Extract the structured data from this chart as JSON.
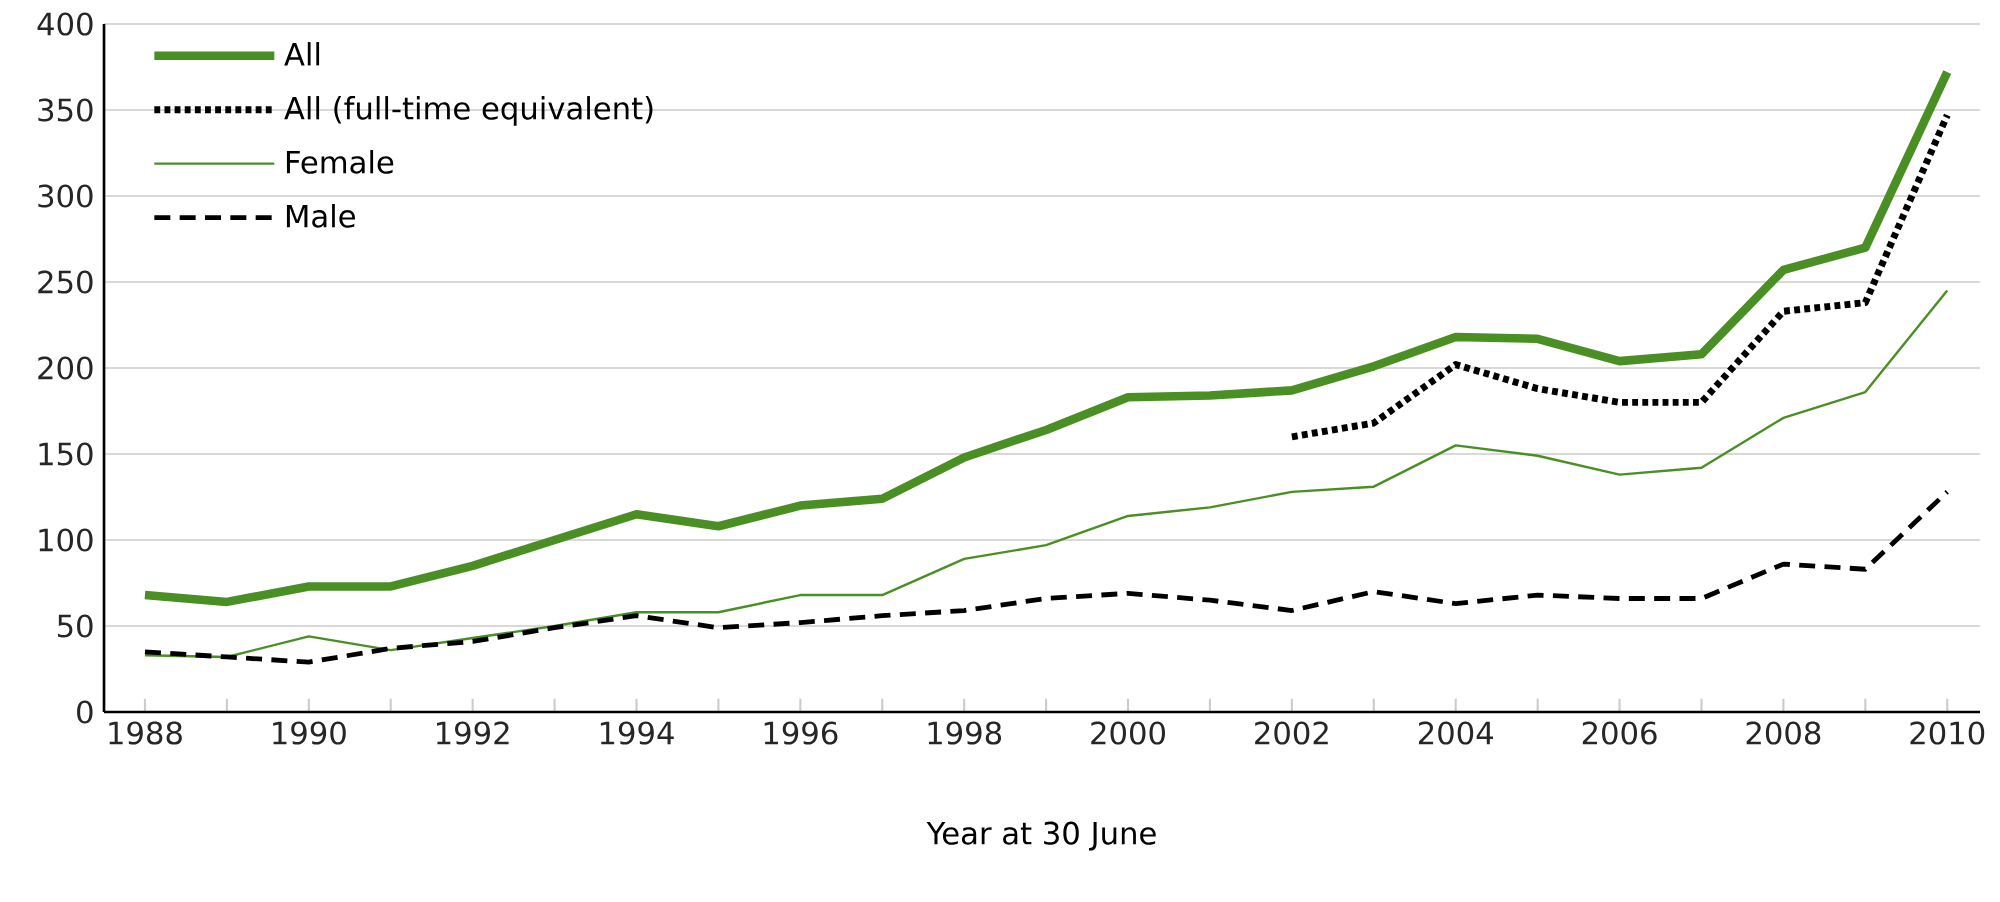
{
  "chart_data": {
    "type": "line",
    "xlabel": "Year at 30 June",
    "x": [
      1988,
      1989,
      1990,
      1991,
      1992,
      1993,
      1994,
      1995,
      1996,
      1997,
      1998,
      1999,
      2000,
      2001,
      2002,
      2003,
      2004,
      2005,
      2006,
      2007,
      2008,
      2009,
      2010
    ],
    "series": [
      {
        "name": "All",
        "color": "#4a8f24",
        "line_style": "solid",
        "values": [
          68,
          64,
          73,
          73,
          85,
          100,
          115,
          108,
          120,
          124,
          148,
          164,
          183,
          184,
          187,
          201,
          218,
          217,
          204,
          208,
          257,
          270,
          372
        ]
      },
      {
        "name": "All (full-time equivalent)",
        "color": "#000000",
        "line_style": "dotted",
        "values": [
          null,
          null,
          null,
          null,
          null,
          null,
          null,
          null,
          null,
          null,
          null,
          null,
          null,
          null,
          160,
          168,
          202,
          188,
          180,
          180,
          233,
          238,
          347
        ]
      },
      {
        "name": "Female",
        "color": "#4a8f24",
        "line_style": "solid",
        "values": [
          33,
          32,
          44,
          36,
          43,
          50,
          58,
          58,
          68,
          68,
          89,
          97,
          114,
          119,
          128,
          131,
          155,
          149,
          138,
          142,
          171,
          186,
          245
        ]
      },
      {
        "name": "Male",
        "color": "#000000",
        "line_style": "dashed",
        "values": [
          35,
          32,
          29,
          37,
          41,
          49,
          56,
          49,
          52,
          56,
          59,
          66,
          69,
          65,
          59,
          70,
          63,
          68,
          66,
          66,
          86,
          83,
          128
        ]
      }
    ],
    "xlim": [
      1987.5,
      2010.4
    ],
    "ylim": [
      0,
      400
    ],
    "xticks": [
      1988,
      {
        "value": 1989,
        "label": null
      },
      1990,
      {
        "value": 1991,
        "label": null
      },
      1992,
      {
        "value": 1993,
        "label": null
      },
      1994,
      {
        "value": 1995,
        "label": null
      },
      1996,
      {
        "value": 1997,
        "label": null
      },
      1998,
      {
        "value": 1999,
        "label": null
      },
      2000,
      {
        "value": 2001,
        "label": null
      },
      2002,
      {
        "value": 2003,
        "label": null
      },
      2004,
      {
        "value": 2005,
        "label": null
      },
      2006,
      {
        "value": 2007,
        "label": null
      },
      2008,
      {
        "value": 2009,
        "label": null
      },
      2010
    ],
    "yticks": [
      0,
      50,
      100,
      150,
      200,
      250,
      300,
      350,
      400
    ],
    "grid": "y",
    "legend": "top left",
    "marker": "none"
  }
}
